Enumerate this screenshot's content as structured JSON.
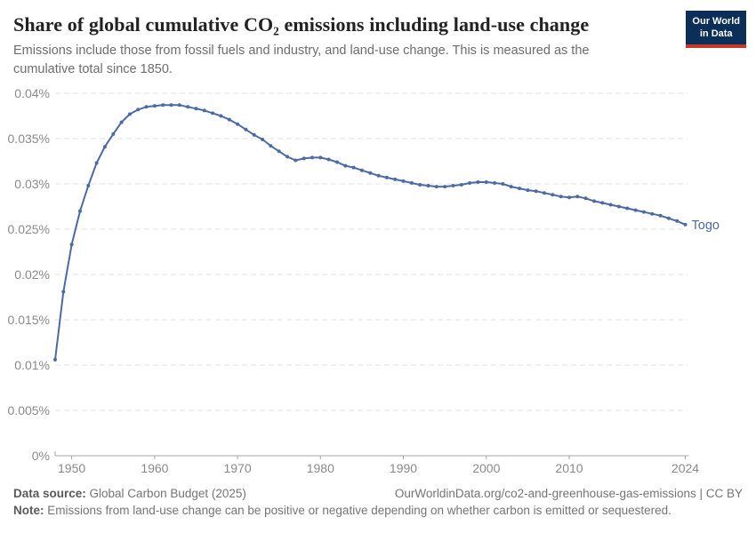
{
  "header": {
    "title": "Share of global cumulative CO₂ emissions including land-use change",
    "subtitle": "Emissions include those from fossil fuels and industry, and land-use change. This is measured as the cumulative total since 1850.",
    "logo": {
      "line1": "Our World",
      "line2": "in Data"
    }
  },
  "chart_data": {
    "type": "line",
    "title": "Share of global cumulative CO₂ emissions including land-use change",
    "entity": "Togo",
    "unit": "% of global cumulative CO₂ emissions",
    "x": [
      1948,
      1949,
      1950,
      1951,
      1952,
      1953,
      1954,
      1955,
      1956,
      1957,
      1958,
      1959,
      1960,
      1961,
      1962,
      1963,
      1964,
      1965,
      1966,
      1967,
      1968,
      1969,
      1970,
      1971,
      1972,
      1973,
      1974,
      1975,
      1976,
      1977,
      1978,
      1979,
      1980,
      1981,
      1982,
      1983,
      1984,
      1985,
      1986,
      1987,
      1988,
      1989,
      1990,
      1991,
      1992,
      1993,
      1994,
      1995,
      1996,
      1997,
      1998,
      1999,
      2000,
      2001,
      2002,
      2003,
      2004,
      2005,
      2006,
      2007,
      2008,
      2009,
      2010,
      2011,
      2012,
      2013,
      2014,
      2015,
      2016,
      2017,
      2018,
      2019,
      2020,
      2021,
      2022,
      2023,
      2024
    ],
    "values": [
      0.0106,
      0.0181,
      0.0233,
      0.027,
      0.0298,
      0.0323,
      0.0341,
      0.0355,
      0.0368,
      0.0377,
      0.0382,
      0.0385,
      0.0386,
      0.0387,
      0.0387,
      0.0387,
      0.0385,
      0.0383,
      0.0381,
      0.0378,
      0.0375,
      0.0371,
      0.0366,
      0.036,
      0.0354,
      0.0349,
      0.0342,
      0.0336,
      0.033,
      0.0326,
      0.0328,
      0.0329,
      0.0329,
      0.0327,
      0.0324,
      0.032,
      0.0318,
      0.0315,
      0.0312,
      0.0309,
      0.0307,
      0.0305,
      0.0303,
      0.0301,
      0.0299,
      0.0298,
      0.0297,
      0.0297,
      0.0298,
      0.0299,
      0.0301,
      0.0302,
      0.0302,
      0.0301,
      0.03,
      0.0297,
      0.0295,
      0.0293,
      0.0292,
      0.029,
      0.0288,
      0.0286,
      0.0285,
      0.0286,
      0.0284,
      0.0281,
      0.0279,
      0.0277,
      0.0275,
      0.0273,
      0.0271,
      0.0269,
      0.0267,
      0.0265,
      0.0262,
      0.0259,
      0.0255
    ],
    "xlim": [
      1948,
      2024
    ],
    "ylim": [
      0,
      0.04
    ],
    "xticks": [
      1950,
      1960,
      1970,
      1980,
      1990,
      2000,
      2010,
      2024
    ],
    "ytick_values": [
      0,
      0.005,
      0.01,
      0.015,
      0.02,
      0.025,
      0.03,
      0.035,
      0.04
    ],
    "ytick_labels": [
      "0%",
      "0.005%",
      "0.01%",
      "0.015%",
      "0.02%",
      "0.025%",
      "0.03%",
      "0.035%",
      "0.04%"
    ],
    "grid": "horizontal-dashed",
    "legend_position": "line-end-label",
    "line_color": "#4c6aa5",
    "colors": {
      "grid": "#e0e0e0",
      "axis": "#a6a6a6",
      "tick_label": "#8a8a8a"
    }
  },
  "footer": {
    "source_label": "Data source:",
    "source_value": " Global Carbon Budget (2025)",
    "citation": "OurWorldinData.org/co2-and-greenhouse-gas-emissions | CC BY",
    "note_label": "Note:",
    "note_value": " Emissions from land-use change can be positive or negative depending on whether carbon is emitted or sequestered."
  },
  "theme": {
    "logo_bg": "#0c2f5a",
    "logo_accent": "#c5392b",
    "accent_blue": "#4c6aa5"
  }
}
